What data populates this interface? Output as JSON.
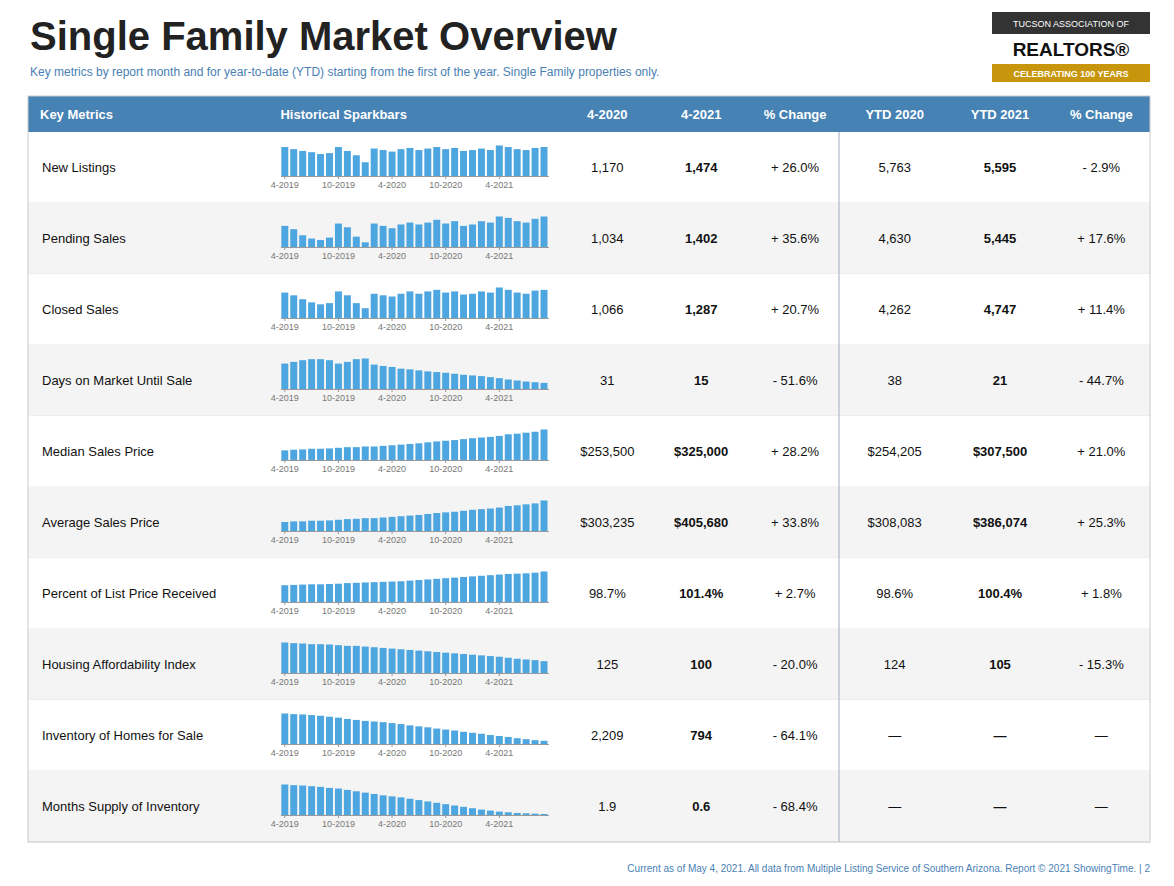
{
  "chart_data": {
    "type": "table",
    "title": "Single Family Market Overview",
    "subtitle": "Key metrics by report month and for year-to-date (YTD) starting from the first of the year. Single Family properties only.",
    "footer": "Current as of May 4, 2021. All data from Multiple Listing Service of Southern Arizona. Report © 2021 ShowingTime. | 2",
    "annotations": [
      "TUCSON ASSOCIATION OF",
      "REALTORS®",
      "CELEBRATING 100 YEARS"
    ],
    "columns": [
      "Key Metrics",
      "Historical Sparkbars",
      "4-2020",
      "4-2021",
      "% Change",
      "YTD 2020",
      "YTD 2021",
      "% Change"
    ],
    "rows": [
      {
        "label": "New Listings",
        "cells": [
          "1,170",
          "1,474",
          "+ 26.0%",
          "5,763",
          "5,595",
          "- 2.9%"
        ],
        "sparkbar": {
          "type": "bar",
          "color": "#4da6e0",
          "tick_labels": "x",
          "ylim": [
            0,
            118
          ],
          "categories": [
            "4-2019",
            null,
            null,
            null,
            null,
            null,
            "10-2019",
            null,
            null,
            null,
            null,
            null,
            "4-2020",
            null,
            null,
            null,
            null,
            null,
            "10-2020",
            null,
            null,
            null,
            null,
            null,
            "4-2021",
            null,
            null,
            null,
            null,
            null
          ],
          "values": [
            95,
            88,
            82,
            78,
            72,
            75,
            95,
            82,
            68,
            45,
            90,
            85,
            80,
            88,
            92,
            85,
            90,
            95,
            88,
            92,
            82,
            85,
            90,
            85,
            100,
            95,
            88,
            85,
            92,
            95
          ]
        }
      },
      {
        "label": "Pending Sales",
        "cells": [
          "1,034",
          "1,402",
          "+ 35.6%",
          "4,630",
          "5,445",
          "+ 17.6%"
        ],
        "sparkbar": {
          "type": "bar",
          "color": "#4da6e0",
          "tick_labels": "x",
          "ylim": [
            0,
            76.7
          ],
          "categories": [
            "4-2019",
            null,
            null,
            null,
            null,
            null,
            "10-2019",
            null,
            null,
            null,
            null,
            null,
            "4-2020",
            null,
            null,
            null,
            null,
            null,
            "10-2020",
            null,
            null,
            null,
            null,
            null,
            "4-2021",
            null,
            null,
            null,
            null,
            null
          ],
          "values": [
            45,
            38,
            25,
            18,
            15,
            20,
            50,
            42,
            22,
            10,
            50,
            45,
            40,
            48,
            52,
            48,
            52,
            58,
            50,
            55,
            45,
            48,
            55,
            52,
            65,
            62,
            55,
            52,
            60,
            65
          ]
        }
      },
      {
        "label": "Closed Sales",
        "cells": [
          "1,066",
          "1,287",
          "+ 20.7%",
          "4,262",
          "4,747",
          "+ 11.4%"
        ],
        "sparkbar": {
          "type": "bar",
          "color": "#4da6e0",
          "tick_labels": "x",
          "ylim": [
            0,
            92.04
          ],
          "categories": [
            "4-2019",
            null,
            null,
            null,
            null,
            null,
            "10-2019",
            null,
            null,
            null,
            null,
            null,
            "4-2020",
            null,
            null,
            null,
            null,
            null,
            "10-2020",
            null,
            null,
            null,
            null,
            null,
            "4-2021",
            null,
            null,
            null,
            null,
            null
          ],
          "values": [
            65,
            58,
            48,
            40,
            35,
            38,
            68,
            58,
            38,
            25,
            62,
            58,
            55,
            62,
            68,
            62,
            68,
            72,
            65,
            68,
            60,
            62,
            68,
            65,
            78,
            72,
            65,
            62,
            70,
            72
          ]
        }
      },
      {
        "label": "Days on Market Until Sale",
        "cells": [
          "31",
          "15",
          "- 51.6%",
          "38",
          "21",
          "- 44.7%"
        ],
        "sparkbar": {
          "type": "bar",
          "color": "#4da6e0",
          "tick_labels": "x",
          "ylim": [
            0,
            106.2
          ],
          "categories": [
            "4-2019",
            null,
            null,
            null,
            null,
            null,
            "10-2019",
            null,
            null,
            null,
            null,
            null,
            "4-2020",
            null,
            null,
            null,
            null,
            null,
            "10-2020",
            null,
            null,
            null,
            null,
            null,
            "4-2021",
            null,
            null,
            null,
            null,
            null
          ],
          "values": [
            75,
            80,
            85,
            88,
            88,
            85,
            75,
            80,
            88,
            90,
            72,
            68,
            65,
            60,
            58,
            55,
            52,
            50,
            48,
            45,
            42,
            40,
            38,
            35,
            32,
            28,
            25,
            22,
            20,
            18
          ]
        }
      },
      {
        "label": "Median Sales Price",
        "cells": [
          "$253,500",
          "$325,000",
          "+ 28.2%",
          "$254,205",
          "$307,500",
          "+ 21.0%"
        ],
        "sparkbar": {
          "type": "bar",
          "color": "#4da6e0",
          "tick_labels": "x",
          "ylim": [
            0,
            112.1
          ],
          "categories": [
            "4-2019",
            null,
            null,
            null,
            null,
            null,
            "10-2019",
            null,
            null,
            null,
            null,
            null,
            "4-2020",
            null,
            null,
            null,
            null,
            null,
            "10-2020",
            null,
            null,
            null,
            null,
            null,
            "4-2021",
            null,
            null,
            null,
            null,
            null
          ],
          "values": [
            30,
            32,
            33,
            35,
            35,
            36,
            38,
            40,
            40,
            42,
            42,
            44,
            46,
            48,
            50,
            52,
            55,
            58,
            60,
            62,
            65,
            68,
            70,
            72,
            75,
            80,
            82,
            85,
            88,
            95
          ]
        }
      },
      {
        "label": "Average Sales Price",
        "cells": [
          "$303,235",
          "$405,680",
          "+ 33.8%",
          "$308,083",
          "$386,074",
          "+ 25.3%"
        ],
        "sparkbar": {
          "type": "bar",
          "color": "#4da6e0",
          "tick_labels": "x",
          "ylim": [
            0,
            112.1
          ],
          "categories": [
            "4-2019",
            null,
            null,
            null,
            null,
            null,
            "10-2019",
            null,
            null,
            null,
            null,
            null,
            "4-2020",
            null,
            null,
            null,
            null,
            null,
            "10-2020",
            null,
            null,
            null,
            null,
            null,
            "4-2021",
            null,
            null,
            null,
            null,
            null
          ],
          "values": [
            28,
            30,
            30,
            32,
            32,
            33,
            35,
            37,
            38,
            40,
            40,
            42,
            44,
            46,
            48,
            50,
            53,
            56,
            58,
            60,
            63,
            66,
            68,
            70,
            73,
            78,
            80,
            83,
            86,
            95
          ]
        }
      },
      {
        "label": "Percent of List Price Received",
        "cells": [
          "98.7%",
          "101.4%",
          "+ 2.7%",
          "98.6%",
          "100.4%",
          "+ 1.8%"
        ],
        "sparkbar": {
          "type": "bar",
          "color": "#4da6e0",
          "tick_labels": "x",
          "ylim": [
            0,
            118
          ],
          "categories": [
            "4-2019",
            null,
            null,
            null,
            null,
            null,
            "10-2019",
            null,
            null,
            null,
            null,
            null,
            "4-2020",
            null,
            null,
            null,
            null,
            null,
            "10-2020",
            null,
            null,
            null,
            null,
            null,
            "4-2021",
            null,
            null,
            null,
            null,
            null
          ],
          "values": [
            55,
            56,
            57,
            58,
            58,
            59,
            60,
            62,
            63,
            64,
            65,
            66,
            67,
            68,
            70,
            72,
            74,
            76,
            78,
            80,
            82,
            84,
            86,
            88,
            90,
            92,
            93,
            94,
            96,
            100
          ]
        }
      },
      {
        "label": "Housing Affordability Index",
        "cells": [
          "125",
          "100",
          "- 20.0%",
          "124",
          "105",
          "- 15.3%"
        ],
        "sparkbar": {
          "type": "bar",
          "color": "#4da6e0",
          "tick_labels": "x",
          "ylim": [
            0,
            106.2
          ],
          "categories": [
            "4-2019",
            null,
            null,
            null,
            null,
            null,
            "10-2019",
            null,
            null,
            null,
            null,
            null,
            "4-2020",
            null,
            null,
            null,
            null,
            null,
            "10-2020",
            null,
            null,
            null,
            null,
            null,
            "4-2021",
            null,
            null,
            null,
            null,
            null
          ],
          "values": [
            90,
            88,
            87,
            85,
            85,
            84,
            82,
            80,
            80,
            78,
            76,
            74,
            72,
            70,
            68,
            66,
            64,
            62,
            60,
            58,
            56,
            54,
            52,
            50,
            48,
            45,
            42,
            40,
            38,
            35
          ]
        }
      },
      {
        "label": "Inventory of Homes for Sale",
        "cells": [
          "2,209",
          "794",
          "- 64.1%",
          "—",
          "—",
          "—"
        ],
        "sparkbar": {
          "type": "bar",
          "color": "#4da6e0",
          "tick_labels": "x",
          "ylim": [
            0,
            112.1
          ],
          "categories": [
            "4-2019",
            null,
            null,
            null,
            null,
            null,
            "10-2019",
            null,
            null,
            null,
            null,
            null,
            "4-2020",
            null,
            null,
            null,
            null,
            null,
            "10-2020",
            null,
            null,
            null,
            null,
            null,
            "4-2021",
            null,
            null,
            null,
            null,
            null
          ],
          "values": [
            95,
            93,
            92,
            90,
            88,
            85,
            82,
            78,
            75,
            72,
            70,
            68,
            65,
            62,
            58,
            55,
            52,
            48,
            45,
            42,
            38,
            35,
            32,
            28,
            25,
            22,
            18,
            15,
            12,
            10
          ]
        }
      },
      {
        "label": "Months Supply of Inventory",
        "cells": [
          "1.9",
          "0.6",
          "- 68.4%",
          "—",
          "—",
          "—"
        ],
        "sparkbar": {
          "type": "bar",
          "color": "#4da6e0",
          "tick_labels": "x",
          "ylim": [
            0,
            106.2
          ],
          "categories": [
            "4-2019",
            null,
            null,
            null,
            null,
            null,
            "10-2019",
            null,
            null,
            null,
            null,
            null,
            "4-2020",
            null,
            null,
            null,
            null,
            null,
            "10-2020",
            null,
            null,
            null,
            null,
            null,
            "4-2021",
            null,
            null,
            null,
            null,
            null
          ],
          "values": [
            90,
            88,
            87,
            85,
            83,
            80,
            78,
            74,
            70,
            66,
            62,
            58,
            55,
            52,
            48,
            44,
            40,
            36,
            32,
            28,
            24,
            20,
            16,
            13,
            10,
            8,
            6,
            5,
            4,
            3
          ]
        }
      }
    ]
  }
}
